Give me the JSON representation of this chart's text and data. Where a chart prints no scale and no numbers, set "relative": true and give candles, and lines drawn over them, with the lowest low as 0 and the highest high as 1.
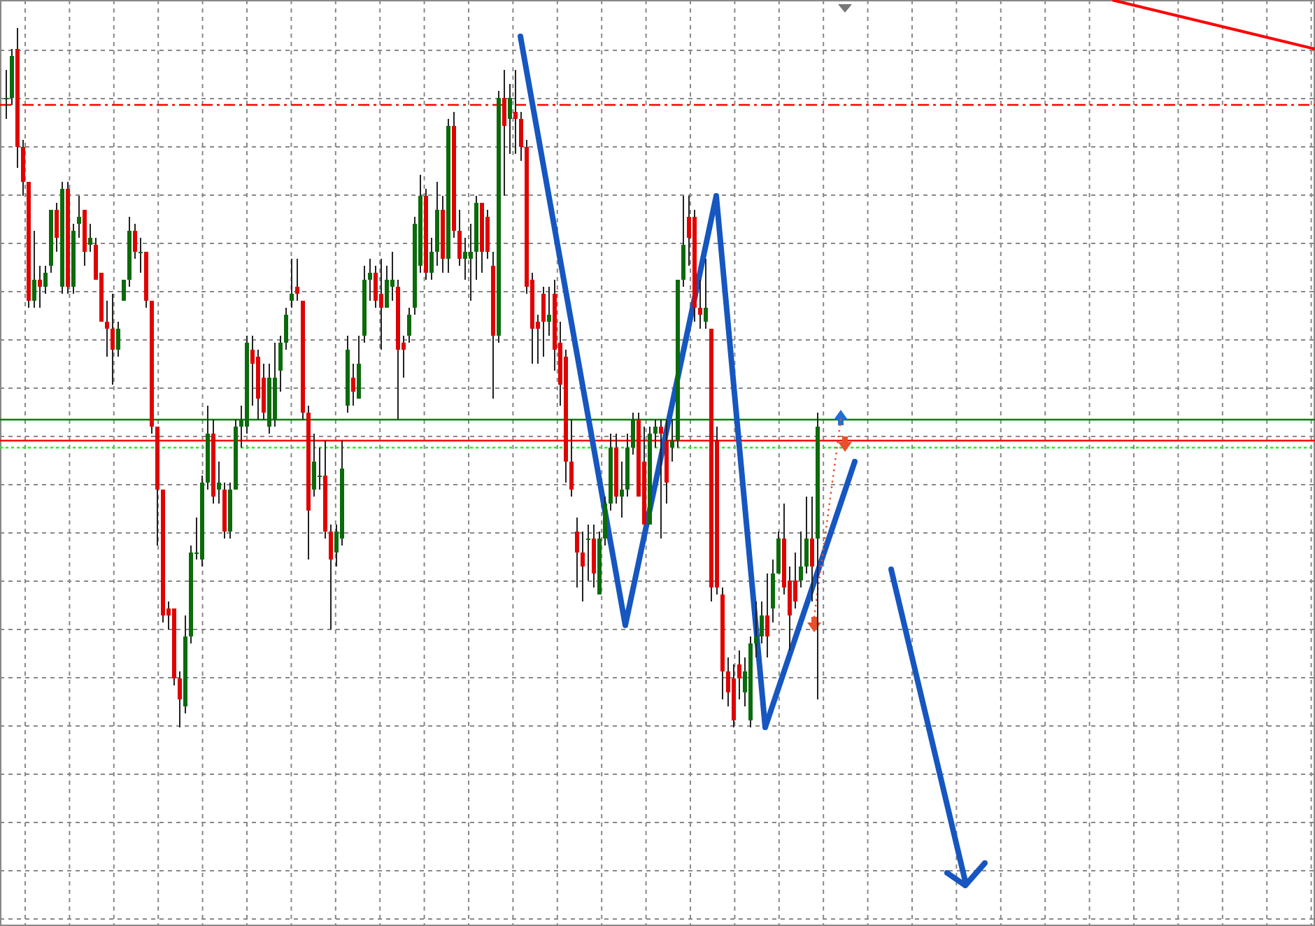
{
  "chart_data": {
    "type": "candlestick",
    "relative": true,
    "grid": true,
    "categories": [
      null,
      null,
      null,
      null,
      null,
      null,
      null,
      null,
      null,
      null,
      null,
      null,
      null,
      null,
      null,
      null,
      null,
      null,
      null,
      null,
      null,
      null,
      null,
      null,
      null,
      null,
      null,
      null,
      null,
      null,
      null,
      null,
      null,
      null,
      null,
      null,
      null,
      null,
      null,
      null,
      null,
      null,
      null,
      null,
      null,
      null,
      null,
      null,
      null,
      null,
      null,
      null,
      null,
      null,
      null,
      null,
      null,
      null,
      null,
      null,
      null,
      null,
      null,
      null,
      null,
      null,
      null,
      null,
      null,
      null,
      null,
      null,
      null,
      null,
      null,
      null,
      null,
      null,
      null,
      null,
      null,
      null,
      null,
      null,
      null,
      null,
      null,
      null,
      null,
      null,
      null,
      null,
      null,
      null,
      null,
      null,
      null,
      null,
      null,
      null,
      null,
      null,
      null,
      null,
      null,
      null,
      null,
      null,
      null,
      null,
      null,
      null,
      null,
      null,
      null,
      null,
      null,
      null,
      null,
      null,
      null,
      null,
      null,
      null,
      null,
      null,
      null,
      null,
      null,
      null,
      null,
      null,
      null,
      null,
      null,
      null,
      null,
      null,
      null,
      null,
      null,
      null,
      null,
      null,
      null,
      null
    ],
    "ohlc": [
      [
        0.9,
        0.94,
        0.87,
        0.9
      ],
      [
        0.9,
        0.97,
        0.89,
        0.96
      ],
      [
        0.97,
        1.0,
        0.8,
        0.83
      ],
      [
        0.83,
        0.84,
        0.76,
        0.78
      ],
      [
        0.78,
        0.78,
        0.6,
        0.61
      ],
      [
        0.61,
        0.71,
        0.6,
        0.64
      ],
      [
        0.64,
        0.66,
        0.6,
        0.63
      ],
      [
        0.63,
        0.66,
        0.62,
        0.65
      ],
      [
        0.66,
        0.74,
        0.65,
        0.74
      ],
      [
        0.74,
        0.75,
        0.68,
        0.7
      ],
      [
        0.63,
        0.78,
        0.62,
        0.77
      ],
      [
        0.77,
        0.78,
        0.62,
        0.63
      ],
      [
        0.63,
        0.72,
        0.62,
        0.71
      ],
      [
        0.72,
        0.76,
        0.7,
        0.73
      ],
      [
        0.74,
        0.74,
        0.66,
        0.68
      ],
      [
        0.69,
        0.72,
        0.68,
        0.7
      ],
      [
        0.69,
        0.7,
        0.64,
        0.64
      ],
      [
        0.65,
        0.65,
        0.58,
        0.58
      ],
      [
        0.58,
        0.61,
        0.53,
        0.57
      ],
      [
        0.57,
        0.62,
        0.49,
        0.54
      ],
      [
        0.54,
        0.58,
        0.53,
        0.57
      ],
      [
        0.61,
        0.64,
        0.61,
        0.64
      ],
      [
        0.64,
        0.73,
        0.63,
        0.71
      ],
      [
        0.71,
        0.72,
        0.67,
        0.68
      ],
      [
        0.68,
        0.7,
        0.65,
        0.68
      ],
      [
        0.68,
        0.68,
        0.6,
        0.61
      ],
      [
        0.61,
        0.61,
        0.42,
        0.43
      ],
      [
        0.43,
        0.43,
        0.26,
        0.34
      ],
      [
        0.34,
        0.34,
        0.15,
        0.16
      ],
      [
        0.17,
        0.18,
        0.14,
        0.16
      ],
      [
        0.17,
        0.17,
        0.06,
        0.07
      ],
      [
        0.07,
        0.08,
        0.0,
        0.04
      ],
      [
        0.03,
        0.16,
        0.02,
        0.13
      ],
      [
        0.13,
        0.26,
        0.12,
        0.25
      ],
      [
        0.25,
        0.3,
        0.24,
        0.25
      ],
      [
        0.24,
        0.36,
        0.23,
        0.35
      ],
      [
        0.35,
        0.46,
        0.34,
        0.42
      ],
      [
        0.42,
        0.44,
        0.32,
        0.33
      ],
      [
        0.34,
        0.38,
        0.32,
        0.35
      ],
      [
        0.34,
        0.35,
        0.27,
        0.28
      ],
      [
        0.28,
        0.35,
        0.27,
        0.34
      ],
      [
        0.34,
        0.44,
        0.34,
        0.43
      ],
      [
        0.43,
        0.46,
        0.4,
        0.44
      ],
      [
        0.43,
        0.56,
        0.42,
        0.55
      ],
      [
        0.54,
        0.56,
        0.46,
        0.52
      ],
      [
        0.53,
        0.54,
        0.44,
        0.47
      ],
      [
        0.5,
        0.52,
        0.44,
        0.45
      ],
      [
        0.43,
        0.52,
        0.42,
        0.5
      ],
      [
        0.44,
        0.55,
        0.43,
        0.5
      ],
      [
        0.51,
        0.56,
        0.48,
        0.55
      ],
      [
        0.55,
        0.6,
        0.54,
        0.59
      ],
      [
        0.61,
        0.67,
        0.6,
        0.62
      ],
      [
        0.63,
        0.67,
        0.61,
        0.62
      ],
      [
        0.61,
        0.61,
        0.44,
        0.45
      ],
      [
        0.45,
        0.46,
        0.24,
        0.31
      ],
      [
        0.34,
        0.42,
        0.33,
        0.38
      ],
      [
        0.36,
        0.4,
        0.34,
        0.36
      ],
      [
        0.36,
        0.41,
        0.27,
        0.28
      ],
      [
        0.28,
        0.29,
        0.14,
        0.24
      ],
      [
        0.25,
        0.29,
        0.23,
        0.28
      ],
      [
        0.27,
        0.41,
        0.26,
        0.37
      ],
      [
        0.46,
        0.56,
        0.45,
        0.54
      ],
      [
        0.5,
        0.52,
        0.46,
        0.48
      ],
      [
        0.47,
        0.56,
        0.47,
        0.52
      ],
      [
        0.56,
        0.66,
        0.55,
        0.64
      ],
      [
        0.64,
        0.67,
        0.61,
        0.65
      ],
      [
        0.65,
        0.66,
        0.6,
        0.61
      ],
      [
        0.62,
        0.67,
        0.54,
        0.6
      ],
      [
        0.6,
        0.66,
        0.6,
        0.64
      ],
      [
        0.63,
        0.68,
        0.61,
        0.64
      ],
      [
        0.63,
        0.64,
        0.44,
        0.54
      ],
      [
        0.55,
        0.56,
        0.5,
        0.54
      ],
      [
        0.56,
        0.6,
        0.55,
        0.59
      ],
      [
        0.6,
        0.73,
        0.59,
        0.72
      ],
      [
        0.66,
        0.79,
        0.65,
        0.76
      ],
      [
        0.76,
        0.77,
        0.64,
        0.65
      ],
      [
        0.65,
        0.7,
        0.64,
        0.68
      ],
      [
        0.68,
        0.78,
        0.66,
        0.74
      ],
      [
        0.74,
        0.76,
        0.65,
        0.67
      ],
      [
        0.67,
        0.87,
        0.65,
        0.86
      ],
      [
        0.86,
        0.88,
        0.7,
        0.71
      ],
      [
        0.71,
        0.74,
        0.66,
        0.67
      ],
      [
        0.67,
        0.7,
        0.64,
        0.68
      ],
      [
        0.67,
        0.72,
        0.61,
        0.68
      ],
      [
        0.68,
        0.76,
        0.64,
        0.75
      ],
      [
        0.75,
        0.75,
        0.65,
        0.68
      ],
      [
        0.73,
        0.74,
        0.67,
        0.68
      ],
      [
        0.66,
        0.68,
        0.47,
        0.56
      ],
      [
        0.56,
        0.91,
        0.55,
        0.9
      ],
      [
        0.9,
        0.94,
        0.76,
        0.86
      ],
      [
        0.87,
        0.92,
        0.82,
        0.9
      ],
      [
        0.88,
        0.94,
        0.82,
        0.87
      ],
      [
        0.87,
        0.88,
        0.81,
        0.83
      ],
      [
        0.83,
        0.84,
        0.62,
        0.63
      ],
      [
        0.64,
        0.65,
        0.52,
        0.57
      ],
      [
        0.58,
        0.59,
        0.52,
        0.57
      ],
      [
        0.62,
        0.63,
        0.53,
        0.58
      ],
      [
        0.58,
        0.63,
        0.56,
        0.59
      ],
      [
        0.62,
        0.64,
        0.51,
        0.54
      ],
      [
        0.55,
        0.58,
        0.46,
        0.49
      ],
      [
        0.53,
        0.54,
        0.35,
        0.38
      ],
      [
        0.38,
        0.44,
        0.33,
        0.34
      ],
      [
        0.28,
        0.3,
        0.2,
        0.25
      ],
      [
        0.25,
        0.28,
        0.18,
        0.23
      ],
      [
        0.27,
        0.29,
        0.21,
        0.27
      ],
      [
        0.27,
        0.29,
        0.2,
        0.22
      ],
      [
        0.19,
        0.28,
        0.19,
        0.27
      ],
      [
        0.27,
        0.33,
        0.26,
        0.32
      ],
      [
        0.32,
        0.42,
        0.31,
        0.4
      ],
      [
        0.4,
        0.42,
        0.32,
        0.33
      ],
      [
        0.33,
        0.38,
        0.3,
        0.34
      ],
      [
        0.34,
        0.42,
        0.33,
        0.4
      ],
      [
        0.4,
        0.45,
        0.39,
        0.44
      ],
      [
        0.44,
        0.45,
        0.33,
        0.33
      ],
      [
        0.38,
        0.43,
        0.29,
        0.29
      ],
      [
        0.29,
        0.43,
        0.29,
        0.42
      ],
      [
        0.42,
        0.44,
        0.4,
        0.43
      ],
      [
        0.43,
        0.44,
        0.27,
        0.42
      ],
      [
        0.41,
        0.44,
        0.32,
        0.35
      ],
      [
        0.4,
        0.44,
        0.38,
        0.41
      ],
      [
        0.41,
        0.64,
        0.4,
        0.64
      ],
      [
        0.64,
        0.76,
        0.63,
        0.69
      ],
      [
        0.73,
        0.76,
        0.66,
        0.7
      ],
      [
        0.73,
        0.74,
        0.58,
        0.6
      ],
      [
        0.6,
        0.64,
        0.57,
        0.59
      ],
      [
        0.58,
        0.67,
        0.57,
        0.6
      ],
      [
        0.57,
        0.57,
        0.18,
        0.2
      ],
      [
        0.41,
        0.43,
        0.19,
        0.2
      ],
      [
        0.19,
        0.2,
        0.04,
        0.08
      ],
      [
        0.08,
        0.1,
        0.03,
        0.05
      ],
      [
        0.07,
        0.09,
        0.0,
        0.01
      ],
      [
        0.09,
        0.11,
        0.04,
        0.07
      ],
      [
        0.05,
        0.1,
        0.03,
        0.08
      ],
      [
        0.01,
        0.13,
        0.0,
        0.12
      ],
      [
        0.12,
        0.18,
        0.1,
        0.13
      ],
      [
        0.13,
        0.18,
        0.12,
        0.16
      ],
      [
        0.16,
        0.22,
        0.1,
        0.13
      ],
      [
        0.17,
        0.24,
        0.15,
        0.22
      ],
      [
        0.22,
        0.28,
        0.22,
        0.27
      ],
      [
        0.27,
        0.32,
        0.19,
        0.2
      ],
      [
        0.21,
        0.23,
        0.11,
        0.16
      ],
      [
        0.21,
        0.25,
        0.17,
        0.18
      ],
      [
        0.21,
        0.28,
        0.2,
        0.23
      ],
      [
        0.23,
        0.33,
        0.22,
        0.27
      ],
      [
        0.27,
        0.33,
        0.18,
        0.23
      ],
      [
        0.27,
        0.45,
        0.04,
        0.43
      ]
    ],
    "ref_lines": [
      {
        "axis": "y",
        "value": 0.89,
        "color": "#ff0000",
        "line_style": "dashed"
      },
      {
        "axis": "y",
        "value": 0.44,
        "color": "#008000",
        "line_style": "solid"
      },
      {
        "axis": "y",
        "value": 0.41,
        "color": "#ff0000",
        "line_style": "solid"
      },
      {
        "axis": "y",
        "value": 0.4,
        "color": "#00ff00",
        "line_style": "dotted"
      }
    ]
  }
}
